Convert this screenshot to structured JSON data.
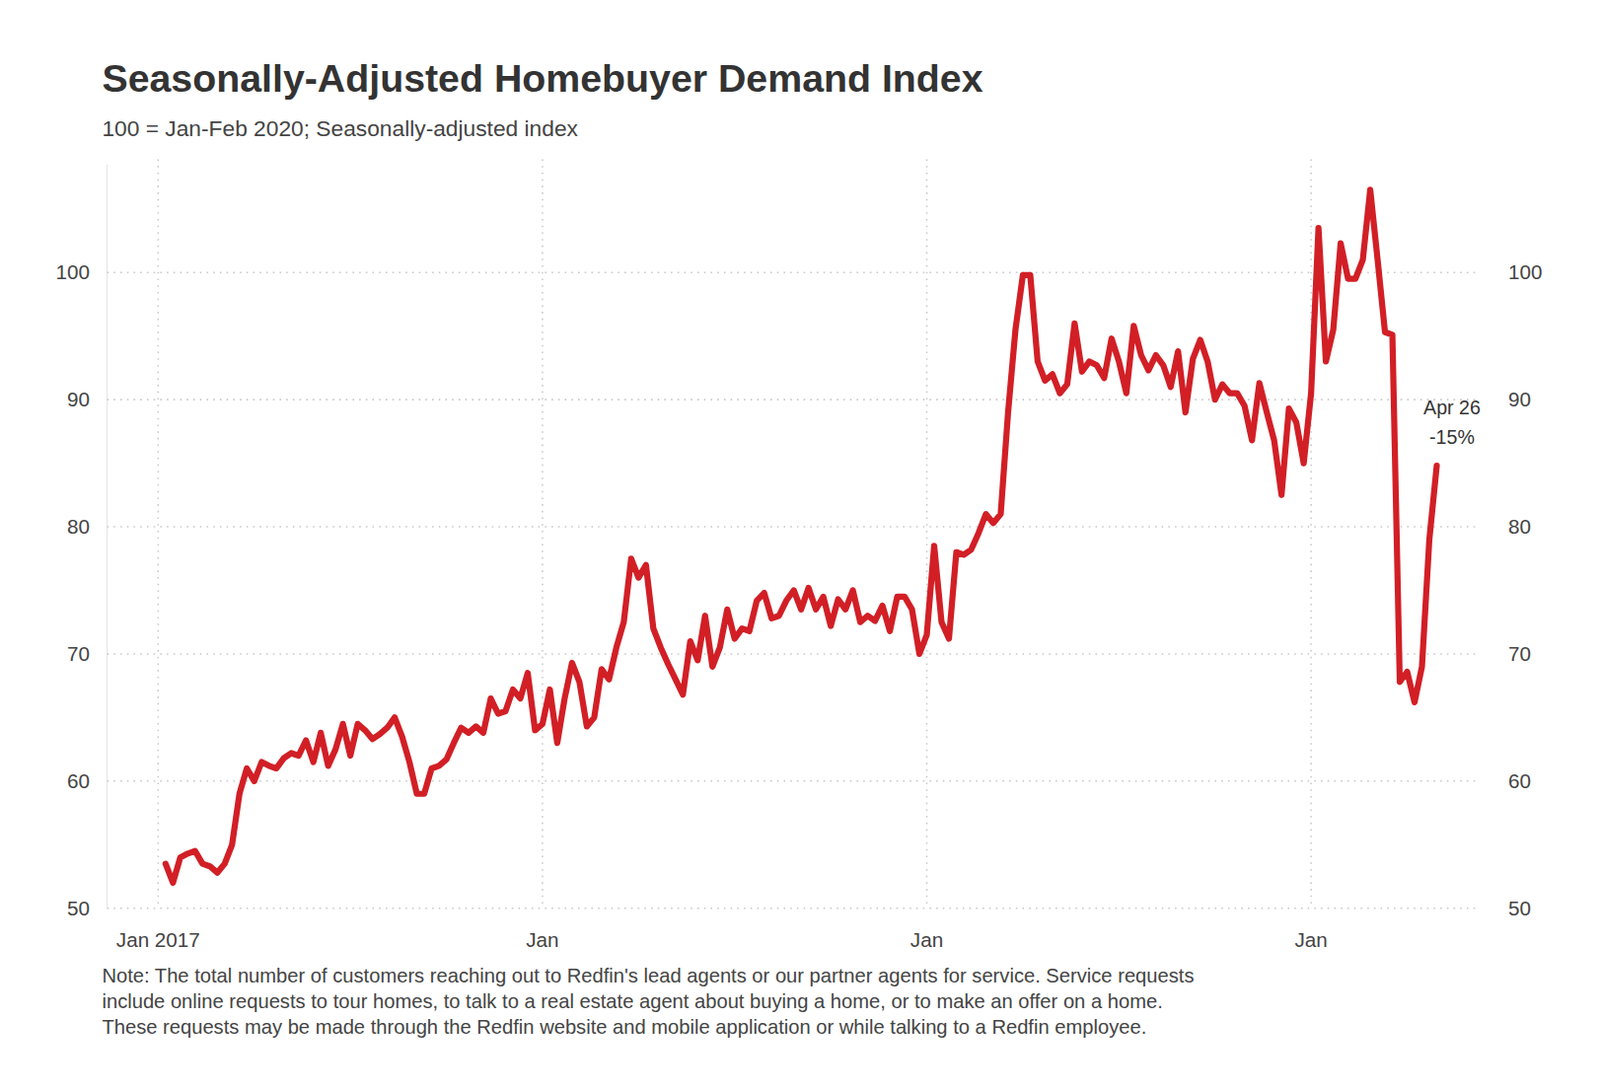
{
  "chart_data": {
    "type": "line",
    "title": "Seasonally-Adjusted Homebuyer Demand Index",
    "subtitle": "100 = Jan-Feb 2020; Seasonally-adjusted index",
    "note": [
      "Note: The total number of customers reaching out to Redfin's lead agents or our partner agents for service. Service requests",
      "include online requests to tour homes, to talk to a real estate agent about buying a home, or to make an offer on a home.",
      "These requests may be made through the Redfin website and mobile application or while talking to a Redfin employee."
    ],
    "annotation": [
      "Apr 26",
      "-15%"
    ],
    "color": "#d21f26",
    "grid": true,
    "ylim": [
      50,
      108.5
    ],
    "yticks": [
      50,
      60,
      70,
      80,
      90,
      100
    ],
    "categories": [
      "Jan 2017",
      null,
      null,
      null,
      null,
      null,
      null,
      null,
      null,
      null,
      null,
      null,
      null,
      null,
      null,
      null,
      null,
      null,
      null,
      null,
      null,
      null,
      null,
      null,
      null,
      null,
      null,
      null,
      null,
      null,
      null,
      null,
      null,
      null,
      null,
      null,
      null,
      null,
      null,
      null,
      null,
      null,
      null,
      null,
      null,
      null,
      null,
      null,
      null,
      null,
      null,
      null,
      "Jan",
      null,
      null,
      null,
      null,
      null,
      null,
      null,
      null,
      null,
      null,
      null,
      null,
      null,
      null,
      null,
      null,
      null,
      null,
      null,
      null,
      null,
      null,
      null,
      null,
      null,
      null,
      null,
      null,
      null,
      null,
      null,
      null,
      null,
      null,
      null,
      null,
      null,
      null,
      null,
      null,
      null,
      null,
      null,
      null,
      null,
      null,
      null,
      null,
      null,
      null,
      null,
      "Jan",
      null,
      null,
      null,
      null,
      null,
      null,
      null,
      null,
      null,
      null,
      null,
      null,
      null,
      null,
      null,
      null,
      null,
      null,
      null,
      null,
      null,
      null,
      null,
      null,
      null,
      null,
      null,
      null,
      null,
      null,
      null,
      null,
      null,
      null,
      null,
      null,
      null,
      null,
      null,
      null,
      null,
      null,
      null,
      null,
      null,
      null,
      null,
      null,
      null,
      null,
      null,
      "Jan",
      null,
      null,
      null,
      null,
      null,
      null,
      null,
      null,
      null,
      null,
      null,
      null,
      null,
      null,
      null,
      null,
      null
    ],
    "values": [
      null,
      53.5,
      52,
      54,
      54.3,
      54.5,
      53.5,
      53.3,
      52.8,
      53.5,
      55,
      59,
      61,
      60,
      61.5,
      61.2,
      61,
      61.8,
      62.2,
      62,
      63.2,
      61.5,
      63.8,
      61.2,
      62.5,
      64.5,
      62,
      64.5,
      64,
      63.3,
      63.7,
      64.2,
      65,
      63.5,
      61.5,
      59,
      59,
      61,
      61.2,
      61.7,
      63,
      64.2,
      63.8,
      64.3,
      63.8,
      66.5,
      65.3,
      65.5,
      67.2,
      66.5,
      68.5,
      64,
      64.5,
      67.2,
      63,
      66.5,
      69.3,
      67.8,
      64.3,
      65,
      68.8,
      68,
      70.5,
      72.5,
      77.5,
      76,
      77,
      72,
      70.5,
      69.2,
      68,
      66.8,
      71,
      69.5,
      73,
      69,
      70.5,
      73.5,
      71.2,
      72,
      71.8,
      74.2,
      74.8,
      72.8,
      73,
      74.2,
      75,
      73.5,
      75.2,
      73.5,
      74.5,
      72.2,
      74.3,
      73.5,
      75,
      72.5,
      73,
      72.6,
      73.8,
      71.8,
      74.5,
      74.5,
      73.5,
      70,
      71.5,
      78.5,
      72.5,
      71.2,
      78,
      77.8,
      78.2,
      79.5,
      81,
      80.3,
      81,
      89,
      95.5,
      99.8,
      99.8,
      93,
      91.5,
      92,
      90.5,
      91.2,
      96,
      92.2,
      93,
      92.7,
      91.7,
      94.8,
      93,
      90.5,
      95.8,
      93.5,
      92.3,
      93.5,
      92.7,
      91,
      93.8,
      89,
      93.2,
      94.7,
      93,
      90,
      91.2,
      90.5,
      90.5,
      89.5,
      86.8,
      91.3,
      89,
      86.8,
      82.5,
      89.3,
      88.2,
      85,
      90.5,
      103.5,
      93,
      95.5,
      102.3,
      99.5,
      99.5,
      101,
      106.5,
      101,
      95.3,
      95.1,
      67.8,
      68.6,
      66.2,
      69,
      79,
      84.8
    ]
  }
}
